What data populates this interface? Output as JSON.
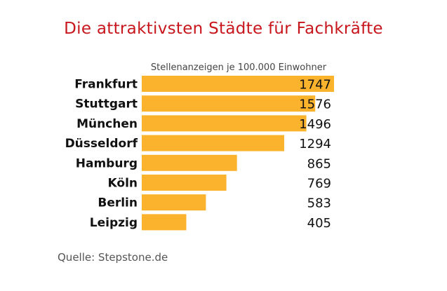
{
  "title": "Die attraktivsten Städte für Fachkräfte",
  "source": "Quelle: Stepstone.de",
  "colors": {
    "bar": "#fbb22c",
    "title": "#c8161d"
  },
  "chart_data": {
    "type": "bar",
    "orientation": "horizontal",
    "title": "Die attraktivsten Städte für Fachkräfte",
    "xlabel": "Stellenanzeigen je 100.000 Einwohner",
    "ylabel": "",
    "categories": [
      "Frankfurt",
      "Stuttgart",
      "München",
      "Düsseldorf",
      "Hamburg",
      "Köln",
      "Berlin",
      "Leipzig"
    ],
    "values": [
      1747,
      1576,
      1496,
      1294,
      865,
      769,
      583,
      405
    ],
    "value_labels": [
      "1747",
      "1576",
      "1496",
      "1294",
      "865",
      "769",
      "583",
      "405"
    ],
    "xlim": [
      0,
      1747
    ],
    "grid": false,
    "legend": "none"
  }
}
